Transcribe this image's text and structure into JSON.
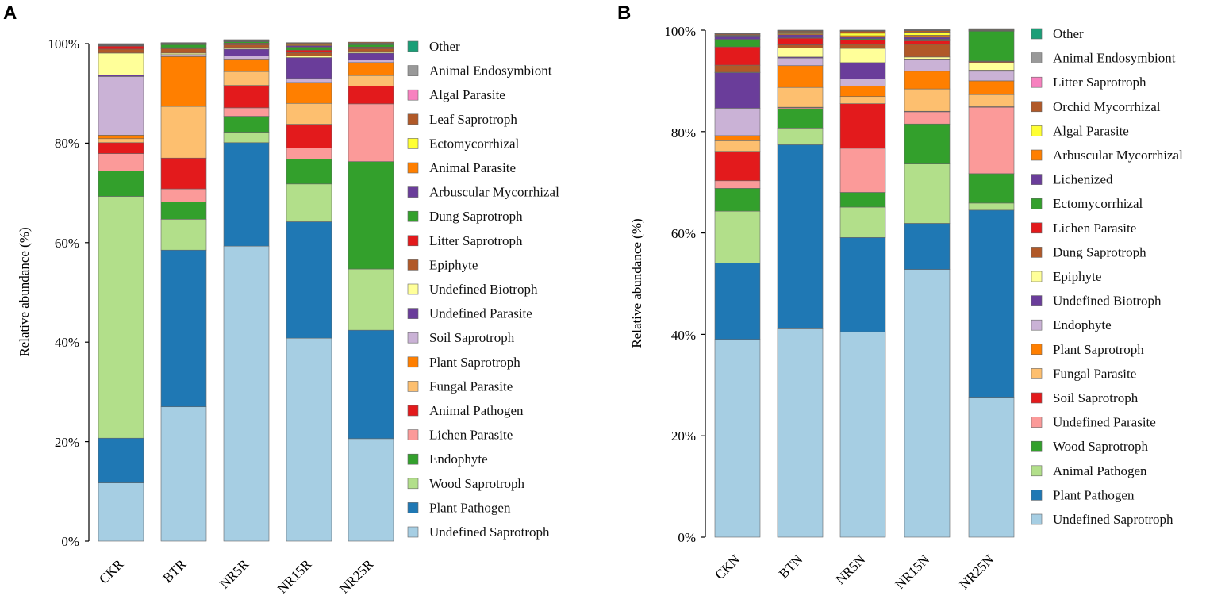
{
  "chart_data": [
    {
      "type": "bar",
      "stacked": true,
      "panel_label": "A",
      "ylabel": "Relative abundance (%)",
      "ylim": [
        0,
        100
      ],
      "yticks": [
        "0%",
        "20%",
        "40%",
        "60%",
        "80%",
        "100%"
      ],
      "categories": [
        "CKR",
        "BTR",
        "NR5R",
        "NR15R",
        "NR25R"
      ],
      "legend_order": [
        "Other",
        "Animal Endosymbiont",
        "Algal Parasite",
        "Leaf Saprotroph",
        "Ectomycorrhizal",
        "Animal Parasite",
        "Arbuscular Mycorrhizal",
        "Dung Saprotroph",
        "Litter Saprotroph",
        "Epiphyte",
        "Undefined Biotroph",
        "Undefined Parasite",
        "Soil Saprotroph",
        "Plant Saprotroph",
        "Fungal Parasite",
        "Animal Pathogen",
        "Lichen Parasite",
        "Endophyte",
        "Wood Saprotroph",
        "Plant Pathogen",
        "Undefined Saprotroph"
      ],
      "series": [
        {
          "name": "Undefined Saprotroph",
          "color": "#A6CEE3",
          "values": [
            11.7,
            27.0,
            59.3,
            40.8,
            20.6
          ]
        },
        {
          "name": "Plant Pathogen",
          "color": "#1F78B4",
          "values": [
            9.0,
            31.5,
            20.8,
            23.4,
            21.8
          ]
        },
        {
          "name": "Wood Saprotroph",
          "color": "#B2DF8A",
          "values": [
            48.6,
            6.2,
            2.1,
            7.6,
            12.3
          ]
        },
        {
          "name": "Endophyte",
          "color": "#33A02C",
          "values": [
            5.1,
            3.5,
            3.2,
            5.0,
            21.6
          ]
        },
        {
          "name": "Lichen Parasite",
          "color": "#FB9A99",
          "values": [
            3.5,
            2.6,
            1.7,
            2.2,
            11.6
          ]
        },
        {
          "name": "Animal Pathogen",
          "color": "#E31A1C",
          "values": [
            2.2,
            6.2,
            4.5,
            4.8,
            3.6
          ]
        },
        {
          "name": "Fungal Parasite",
          "color": "#FDBF6F",
          "values": [
            0.8,
            10.4,
            2.8,
            4.2,
            2.1
          ]
        },
        {
          "name": "Plant Saprotroph",
          "color": "#FF7F00",
          "values": [
            0.7,
            10.0,
            2.5,
            4.2,
            2.6
          ]
        },
        {
          "name": "Soil Saprotroph",
          "color": "#CAB2D6",
          "values": [
            11.8,
            0.4,
            0.6,
            0.8,
            0.5
          ]
        },
        {
          "name": "Undefined Parasite",
          "color": "#6A3D9A",
          "values": [
            0.3,
            0.0,
            1.4,
            4.2,
            1.4
          ]
        },
        {
          "name": "Undefined Biotroph",
          "color": "#FFFF99",
          "values": [
            4.4,
            0.3,
            0.3,
            0.3,
            0.3
          ]
        },
        {
          "name": "Epiphyte",
          "color": "#B15928",
          "values": [
            0.8,
            0.9,
            0.6,
            0.7,
            0.6
          ]
        },
        {
          "name": "Litter Saprotroph",
          "color": "#E31A1C",
          "values": [
            0.6,
            0.2,
            0.3,
            0.5,
            0.3
          ]
        },
        {
          "name": "Dung Saprotroph",
          "color": "#33A02C",
          "values": [
            0.1,
            0.6,
            0.3,
            0.6,
            0.5
          ]
        },
        {
          "name": "Arbuscular Mycorrhizal",
          "color": "#6A3D9A",
          "values": [
            0.1,
            0.1,
            0.1,
            0.3,
            0.1
          ]
        },
        {
          "name": "Animal Parasite",
          "color": "#FF7F00",
          "values": [
            0.1,
            0.1,
            0.1,
            0.2,
            0.1
          ]
        },
        {
          "name": "Ectomycorrhizal",
          "color": "#FFFF33",
          "values": [
            0.1,
            0.1,
            0.1,
            0.1,
            0.1
          ]
        },
        {
          "name": "Leaf Saprotroph",
          "color": "#B15928",
          "values": [
            0.1,
            0.1,
            0.1,
            0.2,
            0.2
          ]
        },
        {
          "name": "Algal Parasite",
          "color": "#F781BF",
          "values": [
            0.0,
            0.0,
            0.0,
            0.1,
            0.0
          ]
        },
        {
          "name": "Animal Endosymbiont",
          "color": "#999999",
          "values": [
            0.0,
            0.0,
            0.0,
            0.0,
            0.0
          ]
        },
        {
          "name": "Other",
          "color": "#1B9E77",
          "values": [
            0.0,
            0.0,
            0.0,
            0.0,
            0.0
          ]
        }
      ]
    },
    {
      "type": "bar",
      "stacked": true,
      "panel_label": "B",
      "ylabel": "Relative abundance (%)",
      "ylim": [
        0,
        100
      ],
      "yticks": [
        "0%",
        "20%",
        "40%",
        "60%",
        "80%",
        "100%"
      ],
      "categories": [
        "CKN",
        "BTN",
        "NR5N",
        "NR15N",
        "NR25N"
      ],
      "legend_order": [
        "Other",
        "Animal Endosymbiont",
        "Litter Saprotroph",
        "Orchid Mycorrhizal",
        "Algal Parasite",
        "Arbuscular Mycorrhizal",
        "Lichenized",
        "Ectomycorrhizal",
        "Lichen Parasite",
        "Dung Saprotroph",
        "Epiphyte",
        "Undefined Biotroph",
        "Endophyte",
        "Plant Saprotroph",
        "Fungal Parasite",
        "Soil Saprotroph",
        "Undefined Parasite",
        "Wood Saprotroph",
        "Animal Pathogen",
        "Plant Pathogen",
        "Undefined Saprotroph"
      ],
      "series": [
        {
          "name": "Undefined Saprotroph",
          "color": "#A6CEE3",
          "values": [
            39.0,
            41.1,
            40.5,
            52.8,
            27.6
          ]
        },
        {
          "name": "Plant Pathogen",
          "color": "#1F78B4",
          "values": [
            15.1,
            36.3,
            18.6,
            9.1,
            36.9
          ]
        },
        {
          "name": "Animal Pathogen",
          "color": "#B2DF8A",
          "values": [
            10.2,
            3.3,
            6.0,
            11.7,
            1.4
          ]
        },
        {
          "name": "Wood Saprotroph",
          "color": "#33A02C",
          "values": [
            4.5,
            3.8,
            2.9,
            7.9,
            5.8
          ]
        },
        {
          "name": "Undefined Parasite",
          "color": "#FB9A99",
          "values": [
            1.5,
            0.2,
            8.7,
            2.4,
            13.1
          ]
        },
        {
          "name": "Soil Saprotroph",
          "color": "#E31A1C",
          "values": [
            5.8,
            0.1,
            8.8,
            0.1,
            0.1
          ]
        },
        {
          "name": "Fungal Parasite",
          "color": "#FDBF6F",
          "values": [
            2.1,
            3.9,
            1.4,
            4.4,
            2.4
          ]
        },
        {
          "name": "Plant Saprotroph",
          "color": "#FF7F00",
          "values": [
            1.0,
            4.3,
            2.1,
            3.5,
            2.7
          ]
        },
        {
          "name": "Endophyte",
          "color": "#CAB2D6",
          "values": [
            5.4,
            1.5,
            1.4,
            2.2,
            1.9
          ]
        },
        {
          "name": "Undefined Biotroph",
          "color": "#6A3D9A",
          "values": [
            7.0,
            0.2,
            3.2,
            0.2,
            0.2
          ]
        },
        {
          "name": "Epiphyte",
          "color": "#FFFF99",
          "values": [
            0.1,
            1.8,
            2.8,
            0.4,
            1.5
          ]
        },
        {
          "name": "Dung Saprotroph",
          "color": "#B15928",
          "values": [
            1.4,
            0.6,
            0.8,
            2.5,
            0.2
          ]
        },
        {
          "name": "Lichen Parasite",
          "color": "#E31A1C",
          "values": [
            3.6,
            1.3,
            0.9,
            0.7,
            0.1
          ]
        },
        {
          "name": "Ectomycorrhizal",
          "color": "#33A02C",
          "values": [
            1.5,
            0.1,
            0.2,
            0.3,
            5.9
          ]
        },
        {
          "name": "Lichenized",
          "color": "#6A3D9A",
          "values": [
            0.5,
            0.6,
            0.3,
            0.4,
            0.1
          ]
        },
        {
          "name": "Arbuscular Mycorrhizal",
          "color": "#FF7F00",
          "values": [
            0.2,
            0.2,
            0.3,
            0.4,
            0.1
          ]
        },
        {
          "name": "Algal Parasite",
          "color": "#FFFF33",
          "values": [
            0.1,
            0.3,
            0.5,
            0.6,
            0.1
          ]
        },
        {
          "name": "Orchid Mycorrhizal",
          "color": "#B15928",
          "values": [
            0.2,
            0.2,
            0.4,
            0.3,
            0.1
          ]
        },
        {
          "name": "Litter Saprotroph",
          "color": "#F781BF",
          "values": [
            0.1,
            0.1,
            0.1,
            0.1,
            0.1
          ]
        },
        {
          "name": "Animal Endosymbiont",
          "color": "#999999",
          "values": [
            0.1,
            0.1,
            0.1,
            0.1,
            0.0
          ]
        },
        {
          "name": "Other",
          "color": "#1B9E77",
          "values": [
            0.0,
            0.0,
            0.0,
            0.0,
            0.0
          ]
        }
      ]
    }
  ]
}
